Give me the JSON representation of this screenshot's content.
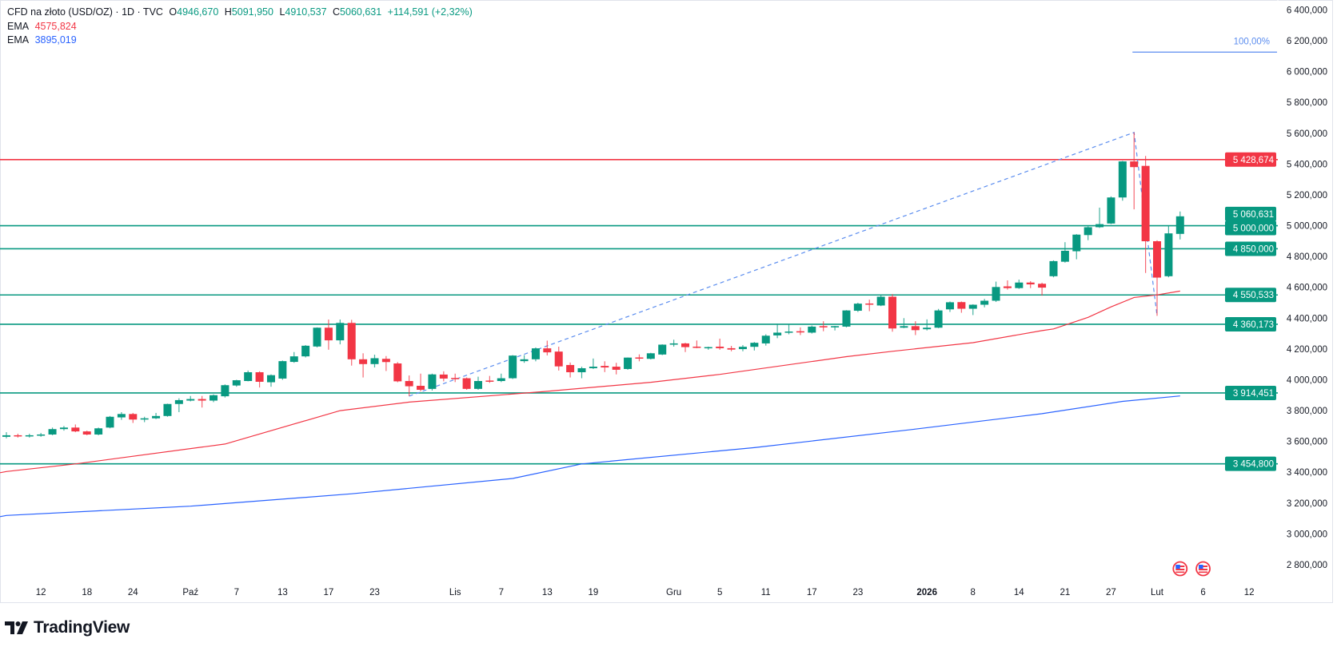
{
  "header": {
    "symbol": "CFD na złoto (USD/OZ) · 1D · TVC",
    "open_label": "O",
    "open": "4946,670",
    "high_label": "H",
    "high": "5091,950",
    "low_label": "L",
    "low": "4910,537",
    "close_label": "C",
    "close": "5060,631",
    "change": "+114,591 (+2,32%)"
  },
  "indicators": [
    {
      "name": "EMA",
      "value": "4575,824",
      "color": "#F23645"
    },
    {
      "name": "EMA",
      "value": "3895,019",
      "color": "#2962FF"
    }
  ],
  "branding": {
    "logo_text": "TradingView"
  },
  "colors": {
    "up": "#089981",
    "down": "#F23645",
    "ema_fast": "#F23645",
    "ema_slow": "#2962FF",
    "fib": "#5B8DEF"
  },
  "chart_data": {
    "type": "candlestick",
    "ylim": [
      2800,
      6400
    ],
    "y_ticks": [
      {
        "v": 6400,
        "label": "6 400,000"
      },
      {
        "v": 6200,
        "label": "6 200,000"
      },
      {
        "v": 6000,
        "label": "6 000,000"
      },
      {
        "v": 5800,
        "label": "5 800,000"
      },
      {
        "v": 5600,
        "label": "5 600,000"
      },
      {
        "v": 5400,
        "label": "5 400,000"
      },
      {
        "v": 5200,
        "label": "5 200,000"
      },
      {
        "v": 5000,
        "label": "5 000,000"
      },
      {
        "v": 4800,
        "label": "4 800,000"
      },
      {
        "v": 4600,
        "label": "4 600,000"
      },
      {
        "v": 4400,
        "label": "4 400,000"
      },
      {
        "v": 4200,
        "label": "4 200,000"
      },
      {
        "v": 4000,
        "label": "4 000,000"
      },
      {
        "v": 3800,
        "label": "3 800,000"
      },
      {
        "v": 3600,
        "label": "3 600,000"
      },
      {
        "v": 3400,
        "label": "3 400,000"
      },
      {
        "v": 3200,
        "label": "3 200,000"
      },
      {
        "v": 3000,
        "label": "3 000,000"
      },
      {
        "v": 2800,
        "label": "2 800,000"
      }
    ],
    "x_ticks": [
      {
        "date": "2025-09-12",
        "label": "12"
      },
      {
        "date": "2025-09-18",
        "label": "18"
      },
      {
        "date": "2025-09-24",
        "label": "24"
      },
      {
        "date": "2025-10-01",
        "label": "Paź"
      },
      {
        "date": "2025-10-07",
        "label": "7"
      },
      {
        "date": "2025-10-13",
        "label": "13"
      },
      {
        "date": "2025-10-17",
        "label": "17"
      },
      {
        "date": "2025-10-23",
        "label": "23"
      },
      {
        "date": "2025-11-03",
        "label": "Lis"
      },
      {
        "date": "2025-11-07",
        "label": "7"
      },
      {
        "date": "2025-11-13",
        "label": "13"
      },
      {
        "date": "2025-11-19",
        "label": "19"
      },
      {
        "date": "2025-12-01",
        "label": "Gru"
      },
      {
        "date": "2025-12-05",
        "label": "5"
      },
      {
        "date": "2025-12-11",
        "label": "11"
      },
      {
        "date": "2025-12-17",
        "label": "17"
      },
      {
        "date": "2025-12-23",
        "label": "23"
      },
      {
        "date": "2026-01-02",
        "label": "2026",
        "bold": true
      },
      {
        "date": "2026-01-08",
        "label": "8"
      },
      {
        "date": "2026-01-14",
        "label": "14"
      },
      {
        "date": "2026-01-21",
        "label": "21"
      },
      {
        "date": "2026-01-27",
        "label": "27"
      },
      {
        "date": "2026-02-02",
        "label": "Lut"
      },
      {
        "date": "2026-02-06",
        "label": "6",
        "future_bars": 2
      },
      {
        "date": "2026-02-12",
        "label": "12",
        "future_bars": 6
      }
    ],
    "candles": [
      [
        "2025-09-09",
        3630,
        3660,
        3620,
        3640
      ],
      [
        "2025-09-10",
        3640,
        3650,
        3625,
        3635
      ],
      [
        "2025-09-11",
        3635,
        3650,
        3625,
        3640
      ],
      [
        "2025-09-12",
        3640,
        3655,
        3630,
        3645
      ],
      [
        "2025-09-15",
        3645,
        3690,
        3640,
        3680
      ],
      [
        "2025-09-16",
        3680,
        3700,
        3670,
        3690
      ],
      [
        "2025-09-17",
        3690,
        3710,
        3660,
        3665
      ],
      [
        "2025-09-18",
        3665,
        3670,
        3640,
        3645
      ],
      [
        "2025-09-19",
        3645,
        3690,
        3640,
        3685
      ],
      [
        "2025-09-22",
        3690,
        3765,
        3685,
        3760
      ],
      [
        "2025-09-23",
        3756,
        3790,
        3740,
        3778
      ],
      [
        "2025-09-24",
        3778,
        3785,
        3720,
        3742
      ],
      [
        "2025-09-25",
        3742,
        3760,
        3725,
        3750
      ],
      [
        "2025-09-26",
        3750,
        3785,
        3745,
        3765
      ],
      [
        "2025-09-29",
        3765,
        3845,
        3760,
        3843
      ],
      [
        "2025-09-30",
        3843,
        3880,
        3790,
        3868
      ],
      [
        "2025-10-01",
        3865,
        3895,
        3860,
        3875
      ],
      [
        "2025-10-02",
        3875,
        3895,
        3820,
        3865
      ],
      [
        "2025-10-03",
        3865,
        3905,
        3855,
        3900
      ],
      [
        "2025-10-06",
        3893,
        3970,
        3885,
        3965
      ],
      [
        "2025-10-07",
        3963,
        4000,
        3955,
        3997
      ],
      [
        "2025-10-08",
        3992,
        4060,
        3990,
        4049
      ],
      [
        "2025-10-09",
        4049,
        4055,
        3950,
        3987
      ],
      [
        "2025-10-10",
        3984,
        4035,
        3955,
        4030
      ],
      [
        "2025-10-13",
        4008,
        4125,
        4000,
        4121
      ],
      [
        "2025-10-14",
        4116,
        4180,
        4110,
        4152
      ],
      [
        "2025-10-15",
        4152,
        4225,
        4145,
        4221
      ],
      [
        "2025-10-16",
        4216,
        4340,
        4210,
        4338
      ],
      [
        "2025-10-17",
        4338,
        4391,
        4195,
        4256
      ],
      [
        "2025-10-20",
        4256,
        4391,
        4230,
        4369
      ],
      [
        "2025-10-21",
        4369,
        4389,
        4092,
        4133
      ],
      [
        "2025-10-22",
        4133,
        4172,
        4015,
        4102
      ],
      [
        "2025-10-23",
        4102,
        4163,
        4080,
        4140
      ],
      [
        "2025-10-24",
        4136,
        4154,
        4057,
        4115
      ],
      [
        "2025-10-27",
        4106,
        4115,
        3984,
        3990
      ],
      [
        "2025-10-28",
        3992,
        4028,
        3894,
        3958
      ],
      [
        "2025-10-29",
        3961,
        4040,
        3925,
        3935
      ],
      [
        "2025-10-30",
        3941,
        4040,
        3930,
        4035
      ],
      [
        "2025-10-31",
        4034,
        4055,
        3990,
        4008
      ],
      [
        "2025-11-03",
        4012,
        4040,
        3985,
        4005
      ],
      [
        "2025-11-04",
        4010,
        4015,
        3935,
        3941
      ],
      [
        "2025-11-05",
        3941,
        4020,
        3935,
        3992
      ],
      [
        "2025-11-06",
        3995,
        4025,
        3980,
        3990
      ],
      [
        "2025-11-07",
        3992,
        4040,
        3985,
        4010
      ],
      [
        "2025-11-10",
        4010,
        4160,
        4005,
        4157
      ],
      [
        "2025-11-11",
        4121,
        4160,
        4110,
        4133
      ],
      [
        "2025-11-12",
        4133,
        4210,
        4120,
        4204
      ],
      [
        "2025-11-13",
        4204,
        4254,
        4158,
        4178
      ],
      [
        "2025-11-14",
        4183,
        4215,
        4060,
        4087
      ],
      [
        "2025-11-17",
        4096,
        4112,
        4015,
        4049
      ],
      [
        "2025-11-18",
        4049,
        4085,
        4010,
        4075
      ],
      [
        "2025-11-19",
        4075,
        4138,
        4070,
        4085
      ],
      [
        "2025-11-20",
        4090,
        4120,
        4050,
        4080
      ],
      [
        "2025-11-21",
        4085,
        4110,
        4035,
        4065
      ],
      [
        "2025-11-24",
        4070,
        4145,
        4065,
        4144
      ],
      [
        "2025-11-25",
        4145,
        4165,
        4120,
        4138
      ],
      [
        "2025-11-26",
        4136,
        4175,
        4132,
        4172
      ],
      [
        "2025-11-28",
        4164,
        4230,
        4160,
        4228
      ],
      [
        "2025-12-01",
        4228,
        4260,
        4215,
        4236
      ],
      [
        "2025-12-02",
        4236,
        4240,
        4180,
        4212
      ],
      [
        "2025-12-03",
        4215,
        4255,
        4205,
        4210
      ],
      [
        "2025-12-04",
        4205,
        4215,
        4195,
        4212
      ],
      [
        "2025-12-05",
        4215,
        4267,
        4195,
        4205
      ],
      [
        "2025-12-08",
        4205,
        4220,
        4185,
        4196
      ],
      [
        "2025-12-09",
        4199,
        4225,
        4185,
        4214
      ],
      [
        "2025-12-10",
        4214,
        4245,
        4190,
        4240
      ],
      [
        "2025-12-11",
        4236,
        4295,
        4222,
        4286
      ],
      [
        "2025-12-12",
        4288,
        4364,
        4270,
        4306
      ],
      [
        "2025-12-15",
        4306,
        4360,
        4295,
        4313
      ],
      [
        "2025-12-16",
        4315,
        4340,
        4290,
        4308
      ],
      [
        "2025-12-17",
        4306,
        4352,
        4300,
        4345
      ],
      [
        "2025-12-18",
        4348,
        4380,
        4315,
        4340
      ],
      [
        "2025-12-19",
        4340,
        4350,
        4320,
        4348
      ],
      [
        "2025-12-22",
        4345,
        4452,
        4340,
        4450
      ],
      [
        "2025-12-23",
        4448,
        4500,
        4440,
        4494
      ],
      [
        "2025-12-24",
        4495,
        4520,
        4445,
        4488
      ],
      [
        "2025-12-26",
        4482,
        4550,
        4478,
        4539
      ],
      [
        "2025-12-29",
        4539,
        4556,
        4312,
        4333
      ],
      [
        "2025-12-30",
        4338,
        4400,
        4335,
        4348
      ],
      [
        "2025-12-31",
        4348,
        4380,
        4290,
        4322
      ],
      [
        "2026-01-02",
        4328,
        4392,
        4320,
        4338
      ],
      [
        "2026-01-05",
        4338,
        4460,
        4335,
        4450
      ],
      [
        "2026-01-06",
        4457,
        4508,
        4440,
        4503
      ],
      [
        "2026-01-07",
        4504,
        4508,
        4435,
        4461
      ],
      [
        "2026-01-08",
        4461,
        4490,
        4420,
        4487
      ],
      [
        "2026-01-09",
        4487,
        4525,
        4470,
        4513
      ],
      [
        "2026-01-12",
        4513,
        4637,
        4505,
        4602
      ],
      [
        "2026-01-13",
        4606,
        4645,
        4585,
        4595
      ],
      [
        "2026-01-14",
        4595,
        4650,
        4590,
        4631
      ],
      [
        "2026-01-15",
        4631,
        4640,
        4595,
        4619
      ],
      [
        "2026-01-16",
        4623,
        4630,
        4546,
        4598
      ],
      [
        "2026-01-20",
        4672,
        4775,
        4665,
        4770
      ],
      [
        "2026-01-21",
        4766,
        4893,
        4760,
        4837
      ],
      [
        "2026-01-22",
        4834,
        4945,
        4782,
        4942
      ],
      [
        "2026-01-23",
        4939,
        4995,
        4906,
        4990
      ],
      [
        "2026-01-26",
        4990,
        5117,
        4985,
        5010
      ],
      [
        "2026-01-27",
        5014,
        5190,
        5010,
        5183
      ],
      [
        "2026-01-28",
        5183,
        5420,
        5162,
        5417
      ],
      [
        "2026-01-29",
        5417,
        5605,
        5106,
        5380
      ],
      [
        "2026-01-30",
        5388,
        5452,
        4693,
        4899
      ],
      [
        "2026-02-02",
        4899,
        4905,
        4415,
        4663
      ],
      [
        "2026-02-03",
        4672,
        5002,
        4665,
        4950
      ],
      [
        "2026-02-04",
        4946.67,
        5091.95,
        4910.537,
        5060.631
      ]
    ],
    "ema_fast": [
      [
        "2025-09-09",
        3405
      ],
      [
        "2025-09-17",
        3454
      ],
      [
        "2025-10-06",
        3583
      ],
      [
        "2025-10-20",
        3800
      ],
      [
        "2025-10-28",
        3855
      ],
      [
        "2025-11-13",
        3925
      ],
      [
        "2025-11-26",
        3984
      ],
      [
        "2025-12-05",
        4035
      ],
      [
        "2025-12-22",
        4150
      ],
      [
        "2025-12-29",
        4185
      ],
      [
        "2026-01-08",
        4241
      ],
      [
        "2026-01-16",
        4319
      ],
      [
        "2026-01-20",
        4330
      ],
      [
        "2026-01-23",
        4405
      ],
      [
        "2026-01-27",
        4473
      ],
      [
        "2026-01-29",
        4534
      ],
      [
        "2026-02-02",
        4551
      ],
      [
        "2026-02-04",
        4575.824
      ]
    ],
    "ema_slow": [
      [
        "2025-09-09",
        3120
      ],
      [
        "2025-10-01",
        3180
      ],
      [
        "2025-10-21",
        3260
      ],
      [
        "2025-11-10",
        3360
      ],
      [
        "2025-11-18",
        3454
      ],
      [
        "2025-12-10",
        3560
      ],
      [
        "2025-12-31",
        3680
      ],
      [
        "2026-01-16",
        3780
      ],
      [
        "2026-01-28",
        3860
      ],
      [
        "2026-02-04",
        3895.019
      ]
    ],
    "horizontal_levels": [
      {
        "v": 5428.674,
        "label": "5 428,674",
        "color": "#F23645"
      },
      {
        "v": 5000,
        "label": "5 000,000",
        "color": "#089981"
      },
      {
        "v": 4850,
        "label": "4 850,000",
        "color": "#089981"
      },
      {
        "v": 4550.533,
        "label": "4 550,533",
        "color": "#089981"
      },
      {
        "v": 4360.173,
        "label": "4 360,173",
        "color": "#089981"
      },
      {
        "v": 3914.451,
        "label": "3 914,451",
        "color": "#089981"
      },
      {
        "v": 3454.8,
        "label": "3 454,800",
        "color": "#089981"
      }
    ],
    "last_price": {
      "v": 5060.631,
      "label": "5 060,631",
      "color": "#089981"
    },
    "fib_extension": {
      "points": [
        [
          "2025-10-28",
          3894
        ],
        [
          "2026-01-29",
          5605
        ],
        [
          "2026-02-02",
          4415
        ]
      ],
      "level_value": 6126,
      "level_label": "100,00%"
    },
    "events": [
      {
        "date": "2026-02-04",
        "icon": "us-flag-icon"
      },
      {
        "date": "2026-02-06",
        "icon": "us-flag-icon",
        "future_bars": 2
      }
    ]
  }
}
